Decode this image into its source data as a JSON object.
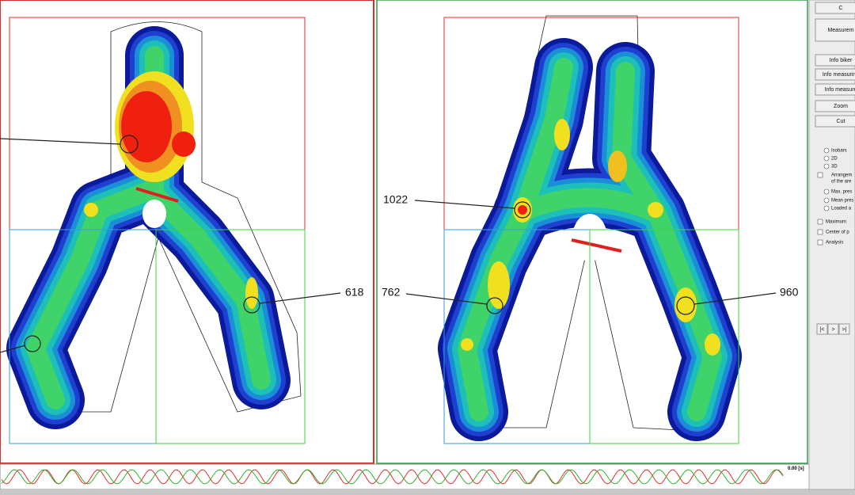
{
  "pressure_maps": [
    {
      "labels": [
        "618"
      ]
    },
    {
      "labels": [
        "1022",
        "762",
        "960"
      ]
    }
  ],
  "timeline": {
    "time": "0.00 [s]"
  },
  "side_panel": {
    "buttons": [
      "C",
      "Measurem",
      "Info biker",
      "Info measuring",
      "Info measure",
      "Zoom",
      "Cut"
    ],
    "options": [
      "Isobars",
      "2D",
      "3D",
      "Arrangem",
      "of the are",
      "Max. pres",
      "Mean pres",
      "Loaded a",
      "Maximum",
      "Center of p",
      "Analysis"
    ],
    "nav": [
      "|<",
      ">",
      ">|"
    ]
  }
}
